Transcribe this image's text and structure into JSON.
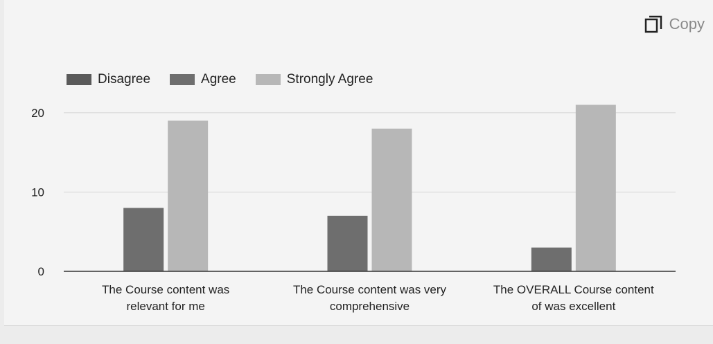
{
  "toolbar": {
    "copy_label": "Copy"
  },
  "legend_colors": {
    "Disagree": "#5a5a5a",
    "Agree": "#6e6e6e",
    "Strongly Agree": "#b7b7b7"
  },
  "chart_data": {
    "type": "bar",
    "title": "",
    "xlabel": "",
    "ylabel": "",
    "categories": [
      [
        "The Course content was",
        "relevant for me"
      ],
      [
        "The Course content was very",
        "comprehensive"
      ],
      [
        "The OVERALL Course content",
        "of was excellent"
      ]
    ],
    "series": [
      {
        "name": "Disagree",
        "values": [
          0,
          0,
          0
        ]
      },
      {
        "name": "Agree",
        "values": [
          8,
          7,
          3
        ]
      },
      {
        "name": "Strongly Agree",
        "values": [
          19,
          18,
          21
        ]
      }
    ],
    "ylim": [
      0,
      22
    ],
    "yticks": [
      0,
      10,
      20
    ],
    "grid": true,
    "legend_position": "top-left"
  }
}
